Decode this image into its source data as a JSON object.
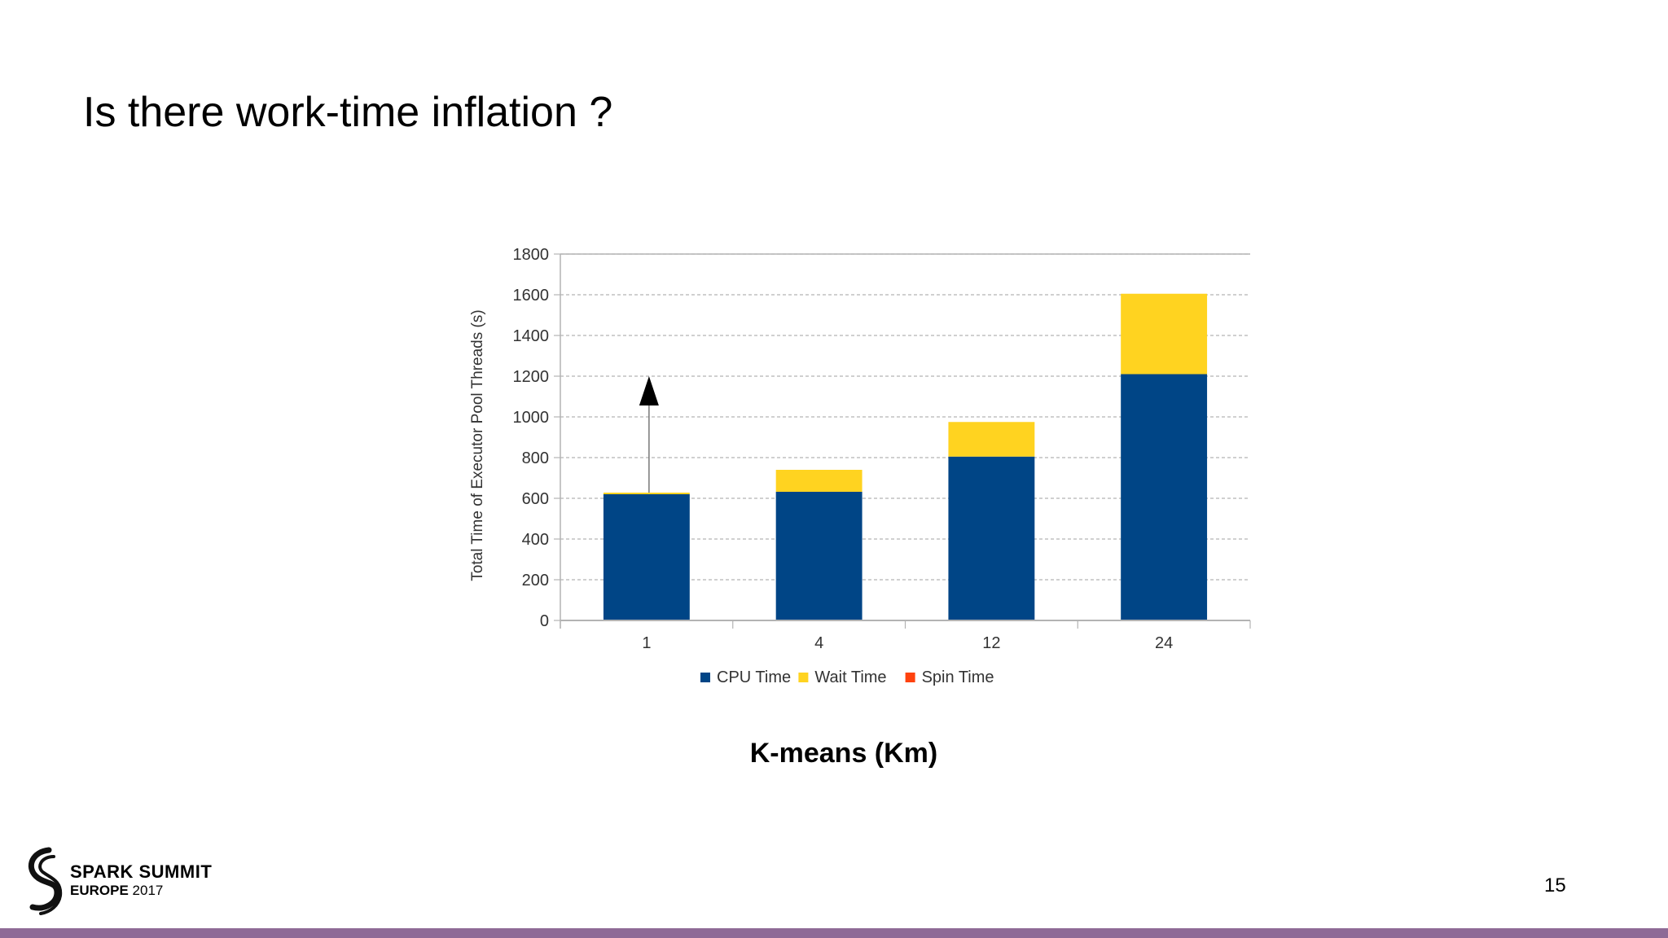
{
  "slide": {
    "title": "Is there work-time inflation ?",
    "subtitle": "K-means (Km)",
    "page_number": "15"
  },
  "logo": {
    "line1": "SPARK SUMMIT",
    "line2_prefix": "EUROPE",
    "line2_year": "2017",
    "icon": "spark-summit-swirl-icon"
  },
  "colors": {
    "cpu": "#004586",
    "wait": "#ffd320",
    "spin": "#ff420e",
    "bottom_bar": "#8e6a96",
    "grid": "#b3b3b3",
    "axis": "#b3b3b3",
    "text": "#333333"
  },
  "chart_data": {
    "type": "bar",
    "stacked": true,
    "categories": [
      "1",
      "4",
      "12",
      "24"
    ],
    "series": [
      {
        "name": "CPU Time",
        "values": [
          620,
          632,
          805,
          1210
        ]
      },
      {
        "name": "Wait Time",
        "values": [
          8,
          108,
          170,
          395
        ]
      },
      {
        "name": "Spin Time",
        "values": [
          0,
          0,
          0,
          0
        ]
      }
    ],
    "title": "",
    "xlabel": "",
    "ylabel": "Total Time of Executor Pool Threads (s)",
    "ylim": [
      0,
      1800
    ],
    "yticks": [
      0,
      200,
      400,
      600,
      800,
      1000,
      1200,
      1400,
      1600,
      1800
    ],
    "grid": true,
    "legend_position": "bottom",
    "annotations": [
      {
        "type": "arrow",
        "category": "1",
        "from": 628,
        "to": 1200
      }
    ]
  }
}
